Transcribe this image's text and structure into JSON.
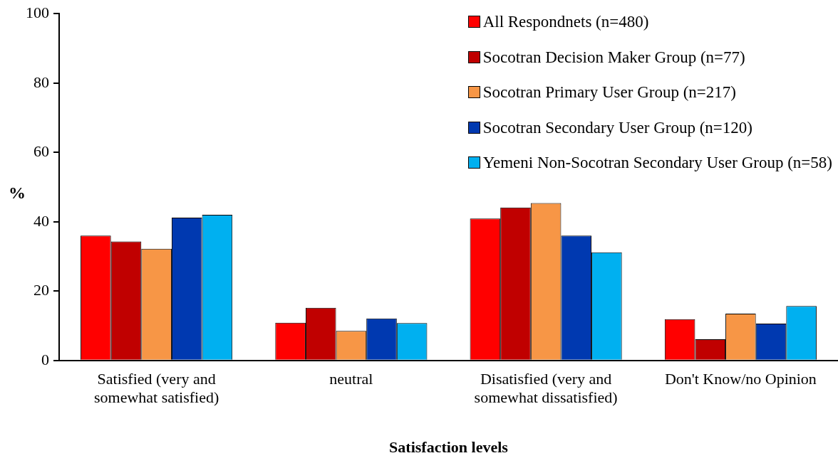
{
  "chart_data": {
    "type": "bar",
    "xlabel": "Satisfaction levels",
    "ylabel": "%",
    "categories": [
      "Satisfied (very and somewhat satisfied)",
      "neutral",
      "Disatisfied (very and somewhat dissatisfied)",
      "Don't Know/no Opinion"
    ],
    "series": [
      {
        "name": "All Respondnets (n=480)",
        "color": "#ff0000",
        "values": [
          36,
          10.9,
          40.9,
          11.9
        ]
      },
      {
        "name": "Socotran Decision Maker Group (n=77)",
        "color": "#c00000",
        "values": [
          34.3,
          15.2,
          44.1,
          6.1
        ]
      },
      {
        "name": "Socotran Primary User Group (n=217)",
        "color": "#f79646",
        "values": [
          32.2,
          8.5,
          45.4,
          13.5
        ]
      },
      {
        "name": "Socotran Secondary User Group (n=120)",
        "color": "#0039b0",
        "values": [
          41.2,
          12.1,
          36,
          10.6
        ]
      },
      {
        "name": "Yemeni Non-Socotran Secondary User Group (n=58)",
        "color": "#00b0f0",
        "values": [
          42,
          10.8,
          31.2,
          15.7
        ]
      }
    ],
    "ylim": [
      0,
      100
    ],
    "yticks": [
      0,
      20,
      40,
      60,
      80,
      100
    ],
    "grid": false,
    "legend": "top right"
  }
}
